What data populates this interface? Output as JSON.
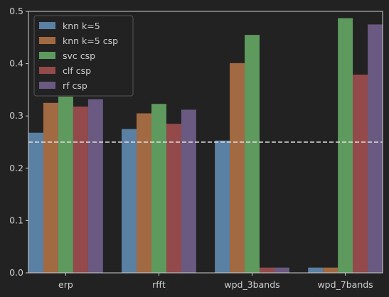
{
  "chart_data": {
    "type": "bar",
    "categories": [
      "erp",
      "rfft",
      "wpd_3bands",
      "wpd_7bands"
    ],
    "series": [
      {
        "name": "knn k=5",
        "color": "#5a80a4",
        "values": [
          0.268,
          0.275,
          0.253,
          0.01
        ]
      },
      {
        "name": "knn k=5 csp",
        "color": "#a26a42",
        "values": [
          0.325,
          0.305,
          0.401,
          0.01
        ]
      },
      {
        "name": "svc csp",
        "color": "#5e9a5e",
        "values": [
          0.337,
          0.323,
          0.455,
          0.487
        ]
      },
      {
        "name": "clf csp",
        "color": "#944a4a",
        "values": [
          0.318,
          0.285,
          0.01,
          0.379
        ]
      },
      {
        "name": "rf csp",
        "color": "#6a5a82",
        "values": [
          0.332,
          0.312,
          0.01,
          0.475
        ]
      }
    ],
    "ylim": [
      0,
      0.5
    ],
    "yticks": [
      "0.0",
      "0.1",
      "0.2",
      "0.3",
      "0.4",
      "0.5"
    ],
    "reference_line": {
      "y": 0.25,
      "style": "dashed",
      "color": "#dddddd"
    },
    "legend": {
      "placement": "top-left"
    },
    "grid": false,
    "title": "",
    "xlabel": "",
    "ylabel": ""
  }
}
